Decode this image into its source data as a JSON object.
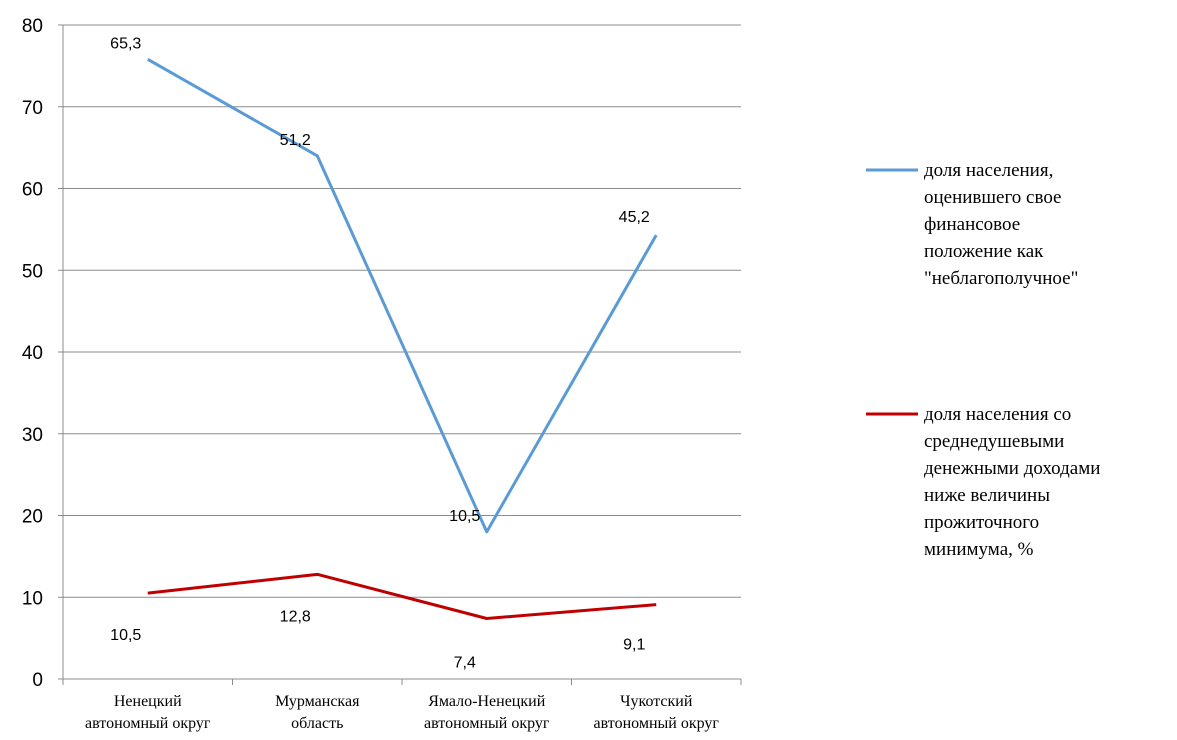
{
  "chart_data": {
    "type": "line",
    "categories": [
      [
        "Ненецкий",
        "автономный округ"
      ],
      [
        "Мурманская",
        "область"
      ],
      [
        "Ямало-Ненецкий",
        "автономный округ"
      ],
      [
        "Чукотский",
        "автономный округ"
      ]
    ],
    "ylim": [
      0,
      80
    ],
    "yticks": [
      "0",
      "10",
      "20",
      "30",
      "40",
      "50",
      "60",
      "70",
      "80"
    ],
    "grid": true,
    "legend_position": "right",
    "series": [
      {
        "name": "доля населения, оценившего свое финансовое положение как \"неблагополучное\"",
        "legend_lines": [
          "доля населения,",
          "оценившего свое",
          "финансовое",
          "положение как",
          "\"неблагополучное\""
        ],
        "color": "#5b9bd5",
        "values": [
          75.8,
          64.0,
          18.0,
          54.3
        ],
        "data_labels": [
          "65,3",
          "51,2",
          "10,5",
          "45,2"
        ]
      },
      {
        "name": "доля населения со среднедушевыми денежными доходами ниже величины прожиточного минимума, %",
        "legend_lines": [
          "доля населения со",
          "среднедушевыми",
          "денежными доходами",
          "ниже величины",
          "прожиточного",
          "минимума, %"
        ],
        "color": "#c00000",
        "values": [
          10.5,
          12.8,
          7.4,
          9.1
        ],
        "data_labels": [
          "10,5",
          "12,8",
          "7,4",
          "9,1"
        ]
      }
    ]
  }
}
